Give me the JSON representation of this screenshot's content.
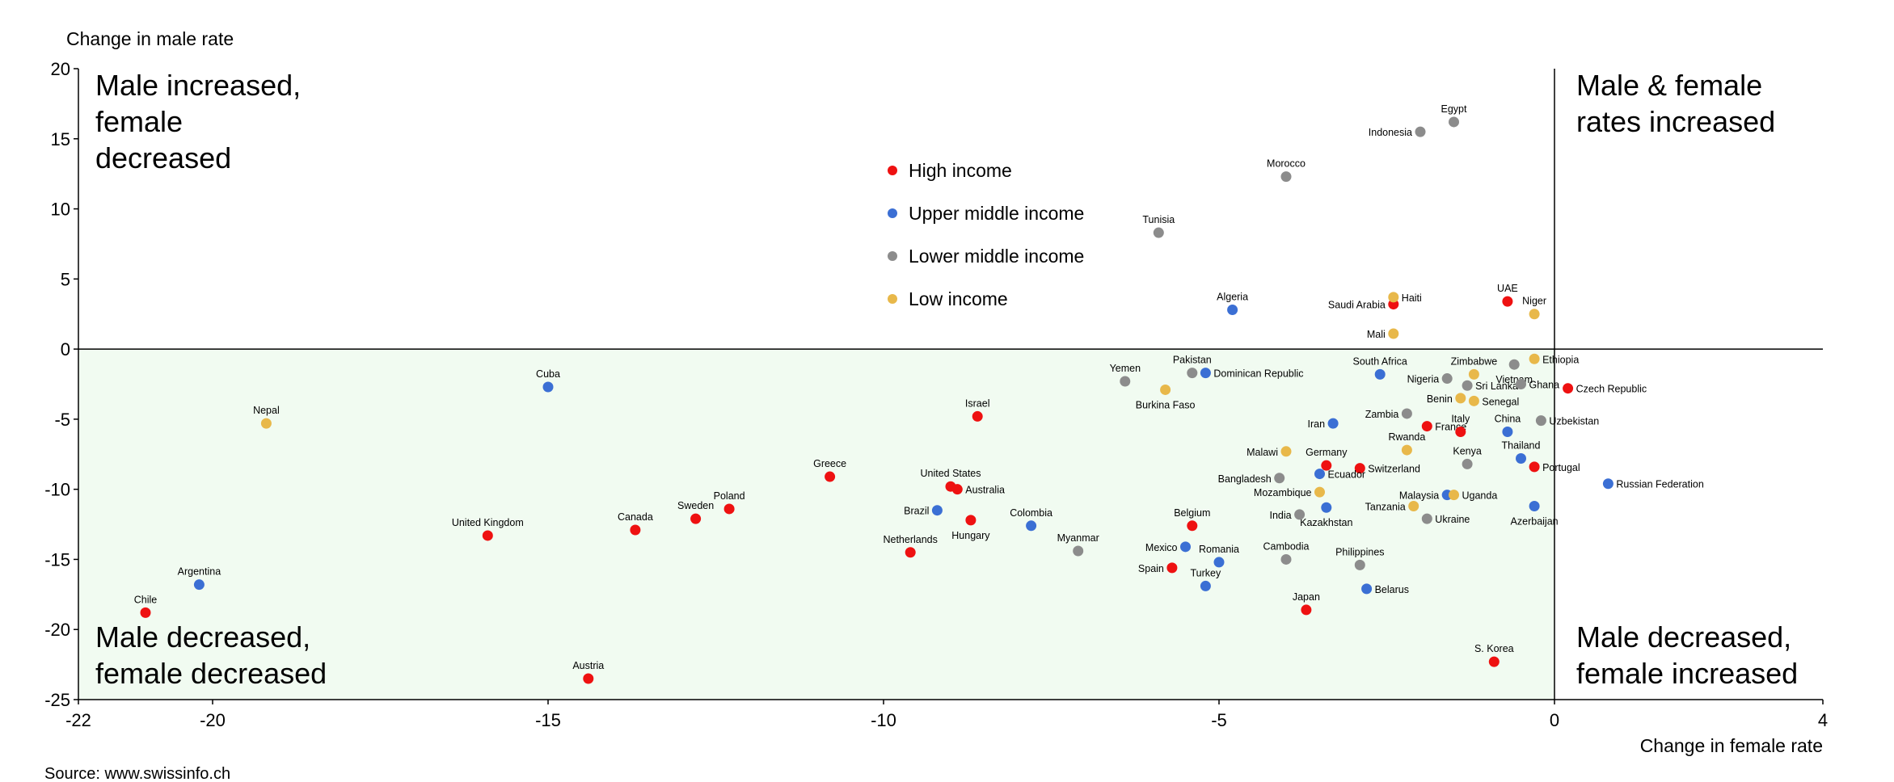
{
  "chart_data": {
    "type": "scatter",
    "title": "",
    "xlabel": "Change in female rate",
    "ylabel": "Change in male rate",
    "xlim": [
      -22,
      4
    ],
    "ylim": [
      -25,
      20
    ],
    "xticks": [
      -22,
      -20,
      -15,
      -10,
      -5,
      0,
      4
    ],
    "yticks": [
      -25,
      -20,
      -15,
      -10,
      -5,
      0,
      5,
      10,
      15,
      20
    ],
    "grid": false,
    "legend_position": "top-center",
    "source": "Source: www.swissinfo.ch",
    "quadrant_labels": {
      "top_left": [
        "Male increased,",
        "female",
        "decreased"
      ],
      "top_right": [
        "Male & female",
        "rates increased"
      ],
      "bottom_left": [
        "Male decreased,",
        "female decreased"
      ],
      "bottom_right": [
        "Male decreased,",
        "female increased"
      ]
    },
    "shaded_region": "x<0,y<0",
    "colors": {
      "High income": "#ee1111",
      "Upper middle income": "#3b6fd4",
      "Lower middle income": "#8c8c8c",
      "Low income": "#e8b84a",
      "shade": "#f1fbf1"
    },
    "series": [
      {
        "name": "High income",
        "points": [
          {
            "label": "Chile",
            "x": -21.0,
            "y": -18.8
          },
          {
            "label": "Austria",
            "x": -14.4,
            "y": -23.5
          },
          {
            "label": "United Kingdom",
            "x": -15.9,
            "y": -13.3
          },
          {
            "label": "Canada",
            "x": -13.7,
            "y": -12.9
          },
          {
            "label": "Sweden",
            "x": -12.8,
            "y": -12.1
          },
          {
            "label": "Poland",
            "x": -12.3,
            "y": -11.4
          },
          {
            "label": "Greece",
            "x": -10.8,
            "y": -9.1
          },
          {
            "label": "Netherlands",
            "x": -9.6,
            "y": -14.5
          },
          {
            "label": "United States",
            "x": -9.0,
            "y": -9.8
          },
          {
            "label": "Australia",
            "x": -8.9,
            "y": -10.0
          },
          {
            "label": "Hungary",
            "x": -8.7,
            "y": -12.2
          },
          {
            "label": "Israel",
            "x": -8.6,
            "y": -4.8
          },
          {
            "label": "Belgium",
            "x": -5.4,
            "y": -12.6
          },
          {
            "label": "Spain",
            "x": -5.7,
            "y": -15.6
          },
          {
            "label": "Japan",
            "x": -3.7,
            "y": -18.6
          },
          {
            "label": "Germany",
            "x": -3.4,
            "y": -8.3
          },
          {
            "label": "Switzerland",
            "x": -2.9,
            "y": -8.5
          },
          {
            "label": "France",
            "x": -1.9,
            "y": -5.5
          },
          {
            "label": "Italy",
            "x": -1.4,
            "y": -5.9
          },
          {
            "label": "Saudi Arabia",
            "x": -2.4,
            "y": 3.2
          },
          {
            "label": "UAE",
            "x": -0.7,
            "y": 3.4
          },
          {
            "label": "Portugal",
            "x": -0.3,
            "y": -8.4
          },
          {
            "label": "Czech Republic",
            "x": 0.2,
            "y": -2.8
          },
          {
            "label": "S. Korea",
            "x": -0.9,
            "y": -22.3
          }
        ]
      },
      {
        "name": "Upper middle income",
        "points": [
          {
            "label": "Argentina",
            "x": -20.2,
            "y": -16.8
          },
          {
            "label": "Cuba",
            "x": -15.0,
            "y": -2.7
          },
          {
            "label": "Brazil",
            "x": -9.2,
            "y": -11.5
          },
          {
            "label": "Colombia",
            "x": -7.8,
            "y": -12.6
          },
          {
            "label": "Mexico",
            "x": -5.5,
            "y": -14.1
          },
          {
            "label": "Romania",
            "x": -5.0,
            "y": -15.2
          },
          {
            "label": "Turkey",
            "x": -5.2,
            "y": -16.9
          },
          {
            "label": "Algeria",
            "x": -4.8,
            "y": 2.8
          },
          {
            "label": "Dominican Republic",
            "x": -5.2,
            "y": -1.7
          },
          {
            "label": "Iran",
            "x": -3.3,
            "y": -5.3
          },
          {
            "label": "Ecuador",
            "x": -3.5,
            "y": -8.9
          },
          {
            "label": "Kazakhstan",
            "x": -3.4,
            "y": -11.3
          },
          {
            "label": "Belarus",
            "x": -2.8,
            "y": -17.1
          },
          {
            "label": "South Africa",
            "x": -2.6,
            "y": -1.8
          },
          {
            "label": "Malaysia",
            "x": -1.6,
            "y": -10.4
          },
          {
            "label": "China",
            "x": -0.7,
            "y": -5.9
          },
          {
            "label": "Thailand",
            "x": -0.5,
            "y": -7.8
          },
          {
            "label": "Azerbaijan",
            "x": -0.3,
            "y": -11.2
          },
          {
            "label": "Russian Federation",
            "x": 0.8,
            "y": -9.6
          }
        ]
      },
      {
        "name": "Lower middle income",
        "points": [
          {
            "label": "Egypt",
            "x": -1.5,
            "y": 16.2
          },
          {
            "label": "Indonesia",
            "x": -2.0,
            "y": 15.5
          },
          {
            "label": "Morocco",
            "x": -4.0,
            "y": 12.3
          },
          {
            "label": "Tunisia",
            "x": -5.9,
            "y": 8.3
          },
          {
            "label": "Yemen",
            "x": -6.4,
            "y": -2.3
          },
          {
            "label": "Pakistan",
            "x": -5.4,
            "y": -1.7
          },
          {
            "label": "Myanmar",
            "x": -7.1,
            "y": -14.4
          },
          {
            "label": "Bangladesh",
            "x": -4.1,
            "y": -9.2
          },
          {
            "label": "India",
            "x": -3.8,
            "y": -11.8
          },
          {
            "label": "Cambodia",
            "x": -4.0,
            "y": -15.0
          },
          {
            "label": "Philippines",
            "x": -2.9,
            "y": -15.4
          },
          {
            "label": "Zambia",
            "x": -2.2,
            "y": -4.6
          },
          {
            "label": "Nigeria",
            "x": -1.6,
            "y": -2.1
          },
          {
            "label": "Sri Lanka",
            "x": -1.3,
            "y": -2.6
          },
          {
            "label": "Kenya",
            "x": -1.3,
            "y": -8.2
          },
          {
            "label": "Ukraine",
            "x": -1.9,
            "y": -12.1
          },
          {
            "label": "Vietnam",
            "x": -0.6,
            "y": -1.1
          },
          {
            "label": "Ghana",
            "x": -0.5,
            "y": -2.5
          },
          {
            "label": "Uzbekistan",
            "x": -0.2,
            "y": -5.1
          }
        ]
      },
      {
        "name": "Low income",
        "points": [
          {
            "label": "Nepal",
            "x": -19.2,
            "y": -5.3
          },
          {
            "label": "Burkina Faso",
            "x": -5.8,
            "y": -2.9
          },
          {
            "label": "Malawi",
            "x": -4.0,
            "y": -7.3
          },
          {
            "label": "Mozambique",
            "x": -3.5,
            "y": -10.2
          },
          {
            "label": "Tanzania",
            "x": -2.1,
            "y": -11.2
          },
          {
            "label": "Haiti",
            "x": -2.4,
            "y": 3.7
          },
          {
            "label": "Mali",
            "x": -2.4,
            "y": 1.1
          },
          {
            "label": "Rwanda",
            "x": -2.2,
            "y": -7.2
          },
          {
            "label": "Benin",
            "x": -1.4,
            "y": -3.5
          },
          {
            "label": "Senegal",
            "x": -1.2,
            "y": -3.7
          },
          {
            "label": "Zimbabwe",
            "x": -1.2,
            "y": -1.8
          },
          {
            "label": "Uganda",
            "x": -1.5,
            "y": -10.4
          },
          {
            "label": "Ethiopia",
            "x": -0.3,
            "y": -0.7
          },
          {
            "label": "Niger",
            "x": -0.3,
            "y": 2.5
          }
        ]
      }
    ]
  }
}
